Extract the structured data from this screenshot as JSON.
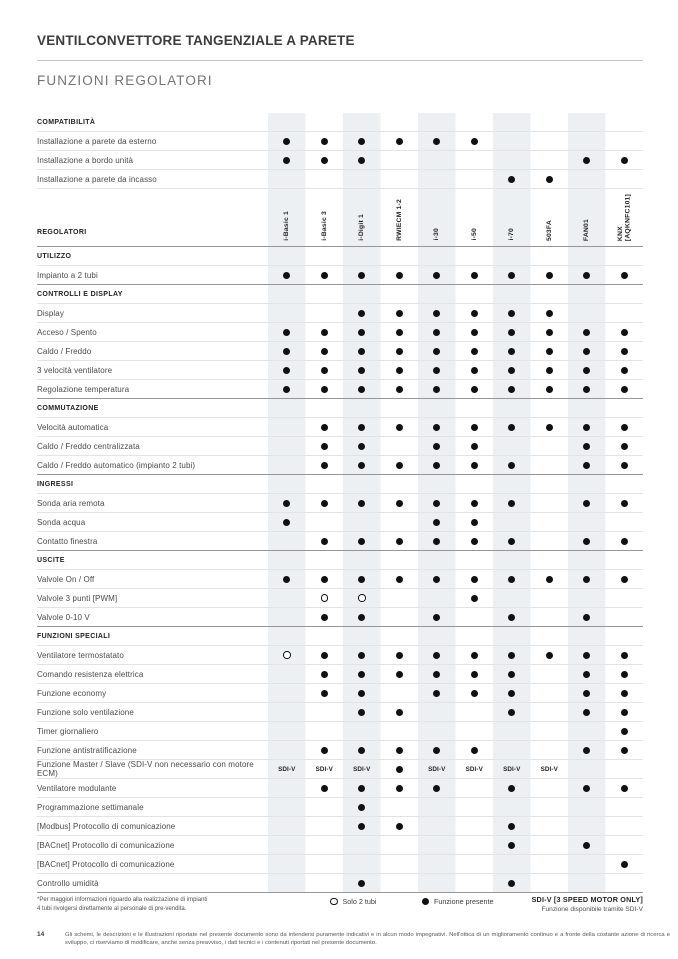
{
  "header": {
    "title": "VENTILCONVETTORE TANGENZIALE A PARETE",
    "subtitle": "FUNZIONI REGOLATORI"
  },
  "table": {
    "regolatori_label": "REGOLATORI",
    "sdiv_label": "SDI-V",
    "columns": [
      "i-Basic 1",
      "i-Basic 3",
      "i-Digit 1",
      "RWIECM 1-2",
      "i-30",
      "i-50",
      "i-70",
      "503FA",
      "FAN01",
      "KNX\n[AQKNFC101]"
    ],
    "blocks": [
      {
        "kind": "header",
        "text": "COMPATIBILITÀ"
      },
      {
        "kind": "row",
        "label": "Installazione a parete da esterno",
        "cells": [
          1,
          1,
          1,
          1,
          1,
          1,
          0,
          0,
          0,
          0
        ]
      },
      {
        "kind": "row",
        "label": "Installazione a bordo unità",
        "cells": [
          1,
          1,
          1,
          0,
          0,
          0,
          0,
          0,
          1,
          1
        ]
      },
      {
        "kind": "row",
        "label": "Installazione a parete da incasso",
        "cells": [
          0,
          0,
          0,
          0,
          0,
          0,
          1,
          1,
          0,
          0
        ]
      },
      {
        "kind": "columns"
      },
      {
        "kind": "header",
        "text": "UTILIZZO"
      },
      {
        "kind": "row",
        "label": "Impianto a 2 tubi",
        "cells": [
          1,
          1,
          1,
          1,
          1,
          1,
          1,
          1,
          1,
          1
        ]
      },
      {
        "kind": "header",
        "text": "CONTROLLI E DISPLAY"
      },
      {
        "kind": "row",
        "label": "Display",
        "cells": [
          0,
          0,
          1,
          1,
          1,
          1,
          1,
          1,
          0,
          0
        ]
      },
      {
        "kind": "row",
        "label": "Acceso / Spento",
        "cells": [
          1,
          1,
          1,
          1,
          1,
          1,
          1,
          1,
          1,
          1
        ]
      },
      {
        "kind": "row",
        "label": "Caldo / Freddo",
        "cells": [
          1,
          1,
          1,
          1,
          1,
          1,
          1,
          1,
          1,
          1
        ]
      },
      {
        "kind": "row",
        "label": "3 velocità ventilatore",
        "cells": [
          1,
          1,
          1,
          1,
          1,
          1,
          1,
          1,
          1,
          1
        ]
      },
      {
        "kind": "row",
        "label": "Regolazione temperatura",
        "cells": [
          1,
          1,
          1,
          1,
          1,
          1,
          1,
          1,
          1,
          1
        ]
      },
      {
        "kind": "header",
        "text": "COMMUTAZIONE"
      },
      {
        "kind": "row",
        "label": "Velocità automatica",
        "cells": [
          0,
          1,
          1,
          1,
          1,
          1,
          1,
          1,
          1,
          1
        ]
      },
      {
        "kind": "row",
        "label": "Caldo / Freddo centralizzata",
        "cells": [
          0,
          1,
          1,
          0,
          1,
          1,
          0,
          0,
          1,
          1
        ]
      },
      {
        "kind": "row",
        "label": "Caldo / Freddo automatico (impianto 2 tubi)",
        "cells": [
          0,
          1,
          1,
          1,
          1,
          1,
          1,
          0,
          1,
          1
        ]
      },
      {
        "kind": "header",
        "text": "INGRESSI"
      },
      {
        "kind": "row",
        "label": "Sonda aria remota",
        "cells": [
          1,
          1,
          1,
          1,
          1,
          1,
          1,
          0,
          1,
          1
        ]
      },
      {
        "kind": "row",
        "label": "Sonda acqua",
        "cells": [
          1,
          0,
          0,
          0,
          1,
          1,
          0,
          0,
          0,
          0
        ]
      },
      {
        "kind": "row",
        "label": "Contatto finestra",
        "cells": [
          0,
          1,
          1,
          1,
          1,
          1,
          1,
          0,
          1,
          1
        ]
      },
      {
        "kind": "header",
        "text": "USCITE"
      },
      {
        "kind": "row",
        "label": "Valvole On / Off",
        "cells": [
          1,
          1,
          1,
          1,
          1,
          1,
          1,
          1,
          1,
          1
        ]
      },
      {
        "kind": "row",
        "label": "Valvole 3 punti [PWM]",
        "cells": [
          0,
          2,
          2,
          0,
          0,
          1,
          0,
          0,
          0,
          0
        ]
      },
      {
        "kind": "row",
        "label": "Valvole 0-10 V",
        "cells": [
          0,
          1,
          1,
          0,
          1,
          0,
          1,
          0,
          1,
          0
        ]
      },
      {
        "kind": "header",
        "text": "FUNZIONI SPECIALI"
      },
      {
        "kind": "row",
        "label": "Ventilatore termostatato",
        "cells": [
          2,
          1,
          1,
          1,
          1,
          1,
          1,
          1,
          1,
          1
        ]
      },
      {
        "kind": "row",
        "label": "Comando resistenza elettrica",
        "cells": [
          0,
          1,
          1,
          1,
          1,
          1,
          1,
          0,
          1,
          1
        ]
      },
      {
        "kind": "row",
        "label": "Funzione economy",
        "cells": [
          0,
          1,
          1,
          0,
          1,
          1,
          1,
          0,
          1,
          1
        ]
      },
      {
        "kind": "row",
        "label": "Funzione solo ventilazione",
        "cells": [
          0,
          0,
          1,
          1,
          0,
          0,
          1,
          0,
          1,
          1
        ]
      },
      {
        "kind": "row",
        "label": "Timer giornaliero",
        "cells": [
          0,
          0,
          0,
          0,
          0,
          0,
          0,
          0,
          0,
          1
        ]
      },
      {
        "kind": "row",
        "label": "Funzione antistratificazione",
        "cells": [
          0,
          1,
          1,
          1,
          1,
          1,
          0,
          0,
          1,
          1
        ]
      },
      {
        "kind": "row",
        "label": "Funzione Master / Slave (SDI-V non necessario con motore ECM)",
        "cells": [
          3,
          3,
          3,
          1,
          3,
          3,
          3,
          3,
          0,
          0
        ]
      },
      {
        "kind": "row",
        "label": "Ventilatore modulante",
        "cells": [
          0,
          1,
          1,
          1,
          1,
          0,
          1,
          0,
          1,
          1
        ]
      },
      {
        "kind": "row",
        "label": "Programmazione settimanale",
        "cells": [
          0,
          0,
          1,
          0,
          0,
          0,
          0,
          0,
          0,
          0
        ]
      },
      {
        "kind": "row",
        "label": "[Modbus] Protocollo di comunicazione",
        "cells": [
          0,
          0,
          1,
          1,
          0,
          0,
          1,
          0,
          0,
          0
        ]
      },
      {
        "kind": "row",
        "label": "[BACnet] Protocollo di comunicazione",
        "cells": [
          0,
          0,
          0,
          0,
          0,
          0,
          1,
          0,
          1,
          0
        ]
      },
      {
        "kind": "row",
        "label": "[BACnet] Protocollo di comunicazione",
        "cells": [
          0,
          0,
          0,
          0,
          0,
          0,
          0,
          0,
          0,
          1
        ]
      },
      {
        "kind": "row",
        "label": "Controllo umidità",
        "cells": [
          0,
          0,
          1,
          0,
          0,
          0,
          1,
          0,
          0,
          0
        ]
      }
    ]
  },
  "legend": {
    "solo_label": "Solo 2 tubi",
    "presente_label": "Funzione presente",
    "sdiv_title": "SDI-V [3 SPEED MOTOR ONLY]",
    "sdiv_sub": "Funzione disponibile tramite SDI-V"
  },
  "footnote": {
    "line1": "*Per maggiori informazioni riguardo alla realizzazione di impianti",
    "line2": "4 tubi rivolgersi direttamente al personale di pre-vendita."
  },
  "footer": {
    "page_number": "14",
    "disclaimer": "Gli schemi, le descrizioni e le illustrazioni riportate nel presente documento sono da intendersi puramente indicativi e in alcun modo impegnativi. Nell'ottica di un miglioramento continuo e a fronte della costante azione di ricerca e sviluppo, ci riserviamo di modificare, anche senza preavviso, i dati tecnici e i contenuti riportati nel presente documento."
  },
  "colors": {
    "stripe": "#edf0f3",
    "dot": "#111111",
    "line_dark": "#969696"
  }
}
